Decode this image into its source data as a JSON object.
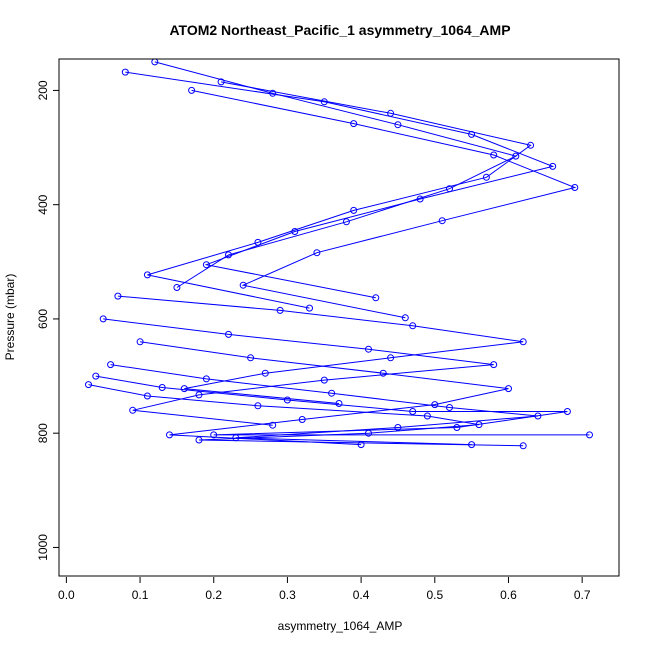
{
  "chart_data": {
    "type": "scatter",
    "title": "ATOM2 Northeast_Pacific_1 asymmetry_1064_AMP",
    "xlabel": "asymmetry_1064_AMP",
    "ylabel": "Pressure (mbar)",
    "xlim": [
      -0.01,
      0.75
    ],
    "ylim": [
      1050,
      145
    ],
    "y_reversed": true,
    "x_ticks": [
      "0.0",
      "0.1",
      "0.2",
      "0.3",
      "0.4",
      "0.5",
      "0.6",
      "0.7"
    ],
    "y_ticks": [
      "200",
      "400",
      "600",
      "800",
      "1000"
    ],
    "marker": "open-circle",
    "connected_lines": true,
    "grid": false,
    "legend": "none",
    "series_color": "#0000ff",
    "profiles": [
      {
        "x": [
          0.12,
          0.28,
          0.45,
          0.61,
          0.52,
          0.38,
          0.22,
          0.15
        ],
        "y": [
          150,
          205,
          260,
          315,
          372,
          430,
          488,
          545
        ]
      },
      {
        "x": [
          0.08,
          0.35,
          0.55,
          0.66,
          0.48,
          0.31,
          0.19,
          0.42
        ],
        "y": [
          168,
          220,
          277,
          333,
          390,
          447,
          505,
          563
        ]
      },
      {
        "x": [
          0.21,
          0.44,
          0.63,
          0.57,
          0.39,
          0.26,
          0.11,
          0.33
        ],
        "y": [
          185,
          240,
          296,
          352,
          410,
          466,
          523,
          581
        ]
      },
      {
        "x": [
          0.17,
          0.39,
          0.58,
          0.69,
          0.51,
          0.34,
          0.24,
          0.46
        ],
        "y": [
          200,
          258,
          313,
          370,
          428,
          484,
          541,
          598
        ]
      },
      {
        "x": [
          0.07,
          0.29,
          0.47,
          0.62,
          0.44,
          0.27,
          0.16,
          0.37
        ],
        "y": [
          560,
          585,
          612,
          640,
          668,
          695,
          722,
          748
        ]
      },
      {
        "x": [
          0.05,
          0.22,
          0.41,
          0.58,
          0.35,
          0.18,
          0.09,
          0.28
        ],
        "y": [
          600,
          627,
          653,
          680,
          707,
          733,
          760,
          786
        ]
      },
      {
        "x": [
          0.1,
          0.25,
          0.43,
          0.6,
          0.5,
          0.32,
          0.14,
          0.4
        ],
        "y": [
          640,
          668,
          695,
          722,
          750,
          776,
          803,
          820
        ]
      },
      {
        "x": [
          0.06,
          0.19,
          0.36,
          0.52,
          0.64,
          0.45,
          0.23,
          0.55
        ],
        "y": [
          680,
          705,
          730,
          755,
          770,
          790,
          808,
          820
        ]
      },
      {
        "x": [
          0.04,
          0.13,
          0.3,
          0.47,
          0.68,
          0.53,
          0.2,
          0.71
        ],
        "y": [
          700,
          720,
          742,
          762,
          762,
          790,
          803,
          803
        ]
      },
      {
        "x": [
          0.03,
          0.11,
          0.26,
          0.49,
          0.56,
          0.41,
          0.18,
          0.62
        ],
        "y": [
          715,
          735,
          752,
          770,
          785,
          800,
          812,
          822
        ]
      }
    ]
  }
}
